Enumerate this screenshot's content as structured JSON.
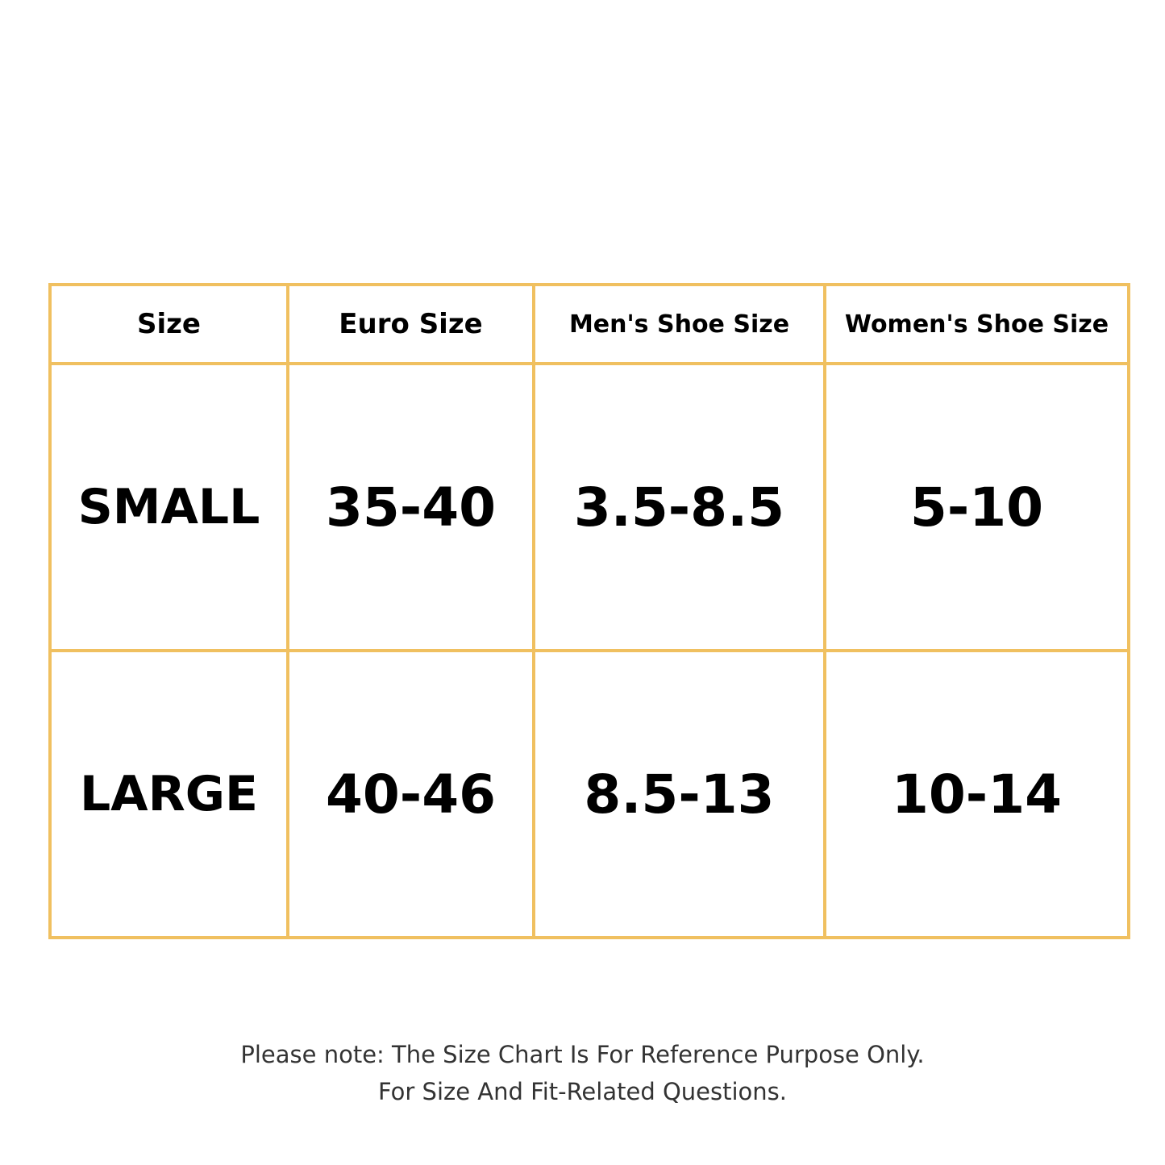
{
  "table": {
    "header": [
      "Size",
      "Euro Size",
      "Men's Shoe Size",
      "Women's Shoe Size"
    ],
    "rows": [
      [
        "SMALL",
        "35-40",
        "3.5-8.5",
        "5-10"
      ],
      [
        "LARGE",
        "40-46",
        "8.5-13",
        "10-14"
      ]
    ]
  },
  "note": [
    "Please note: The Size Chart Is For Reference Purpose Only.",
    "For Size And Fit-Related Questions."
  ]
}
